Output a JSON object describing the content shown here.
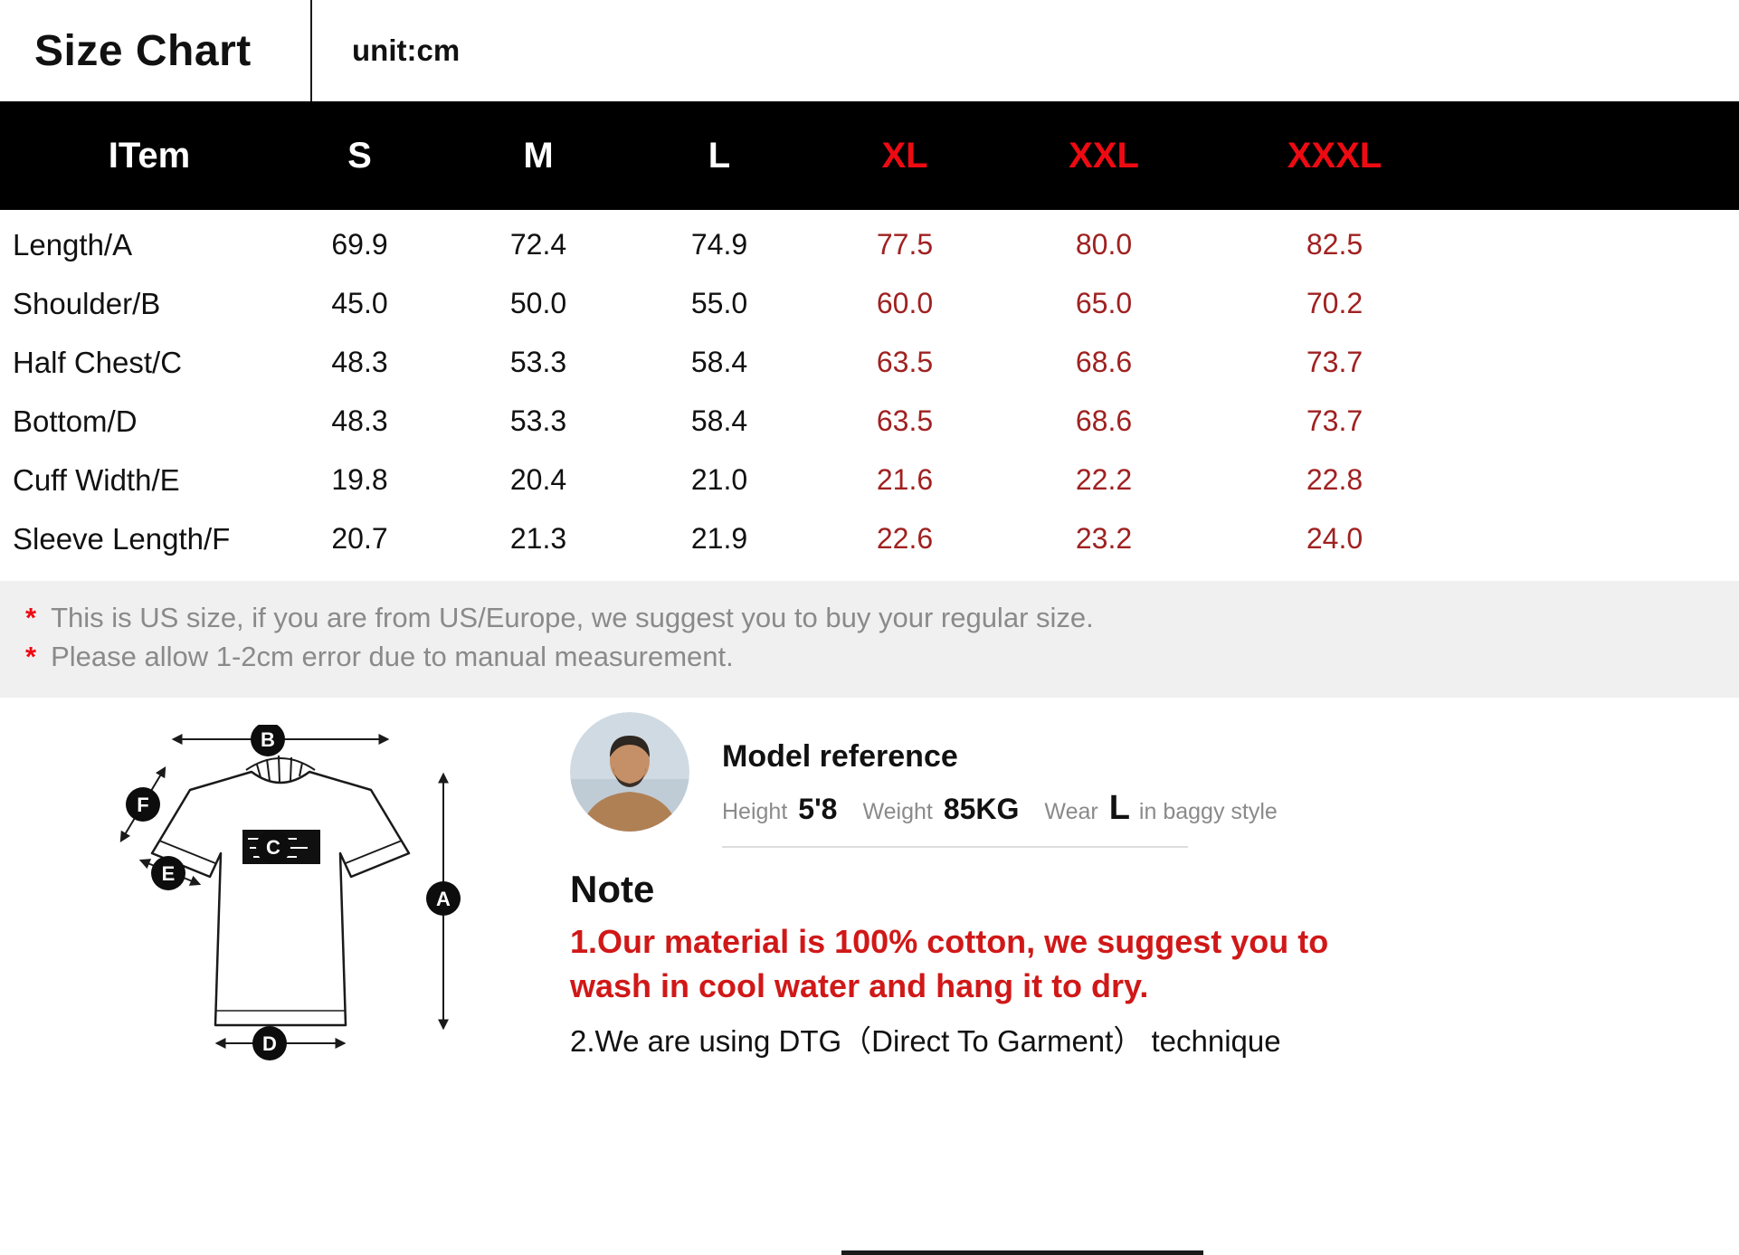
{
  "header": {
    "title": "Size Chart",
    "unit": "unit:cm"
  },
  "table": {
    "item_header": "ITem",
    "size_headers": [
      {
        "label": "S",
        "highlight": false
      },
      {
        "label": "M",
        "highlight": false
      },
      {
        "label": "L",
        "highlight": false
      },
      {
        "label": "XL",
        "highlight": true
      },
      {
        "label": "XXL",
        "highlight": true
      },
      {
        "label": "XXXL",
        "highlight": true
      }
    ],
    "rows": [
      {
        "label": "Length/A",
        "values": [
          "69.9",
          "72.4",
          "74.9",
          "77.5",
          "80.0",
          "82.5"
        ]
      },
      {
        "label": "Shoulder/B",
        "values": [
          "45.0",
          "50.0",
          "55.0",
          "60.0",
          "65.0",
          "70.2"
        ]
      },
      {
        "label": "Half Chest/C",
        "values": [
          "48.3",
          "53.3",
          "58.4",
          "63.5",
          "68.6",
          "73.7"
        ]
      },
      {
        "label": "Bottom/D",
        "values": [
          "48.3",
          "53.3",
          "58.4",
          "63.5",
          "68.6",
          "73.7"
        ]
      },
      {
        "label": "Cuff Width/E",
        "values": [
          "19.8",
          "20.4",
          "21.0",
          "21.6",
          "22.2",
          "22.8"
        ]
      },
      {
        "label": "Sleeve Length/F",
        "values": [
          "20.7",
          "21.3",
          "21.9",
          "22.6",
          "23.2",
          "24.0"
        ]
      }
    ]
  },
  "notes": [
    {
      "star": "*",
      "text": "This is US size, if you are from US/Europe, we suggest you to buy your regular size."
    },
    {
      "star": "*",
      "text": "Please allow 1-2cm error due to manual measurement."
    }
  ],
  "diagram": {
    "badges": {
      "a": "A",
      "b": "B",
      "c": "C",
      "d": "D",
      "e": "E",
      "f": "F"
    }
  },
  "model": {
    "heading": "Model reference",
    "height_label": "Height",
    "height_value": "5'8",
    "weight_label": "Weight",
    "weight_value": "85KG",
    "wear_label": "Wear",
    "wear_value": "L",
    "wear_suffix": "in baggy style"
  },
  "note": {
    "heading": "Note",
    "line1": "1.Our material is 100% cotton, we suggest you to wash in cool water and hang it to dry.",
    "line2": "2.We are using DTG（Direct To Garment）  technique"
  },
  "colors": {
    "header_red": "#ee0a12",
    "value_red": "#a02121",
    "note_red": "#d01818"
  }
}
